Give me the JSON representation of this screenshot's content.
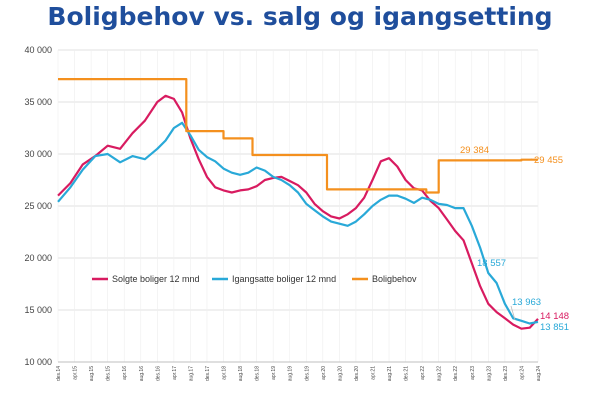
{
  "chart_data": {
    "type": "line",
    "title": "Boligbehov vs. salg og igangsetting",
    "ylim": [
      10000,
      40000
    ],
    "y_ticks": [
      "10 000",
      "15 000",
      "20 000",
      "25 000",
      "30 000",
      "35 000",
      "40 000"
    ],
    "y_tick_values": [
      10000,
      15000,
      20000,
      25000,
      30000,
      35000,
      40000
    ],
    "x_tick_labels": [
      "des.14",
      "apr.15",
      "aug.15",
      "des.15",
      "apr.16",
      "aug.16",
      "des.16",
      "apr.17",
      "aug.17",
      "des.17",
      "apr.18",
      "aug.18",
      "des.18",
      "apr.19",
      "aug.19",
      "des.19",
      "apr.20",
      "aug.20",
      "des.20",
      "apr.21",
      "aug.21",
      "des.21",
      "apr.22",
      "aug.22",
      "des.22",
      "apr.23",
      "aug.23",
      "des.23",
      "apr.24",
      "aug.24"
    ],
    "x_month_start": 0,
    "x_month_end": 116,
    "grid": true,
    "legend_position": "bottom-left",
    "series": [
      {
        "name": "Solgte boliger 12 mnd",
        "color": "#d81b60",
        "points": [
          [
            0,
            26000
          ],
          [
            3,
            27200
          ],
          [
            6,
            29000
          ],
          [
            9,
            29800
          ],
          [
            12,
            30800
          ],
          [
            15,
            30500
          ],
          [
            18,
            32000
          ],
          [
            21,
            33200
          ],
          [
            24,
            35000
          ],
          [
            26,
            35600
          ],
          [
            28,
            35300
          ],
          [
            30,
            34000
          ],
          [
            32,
            31500
          ],
          [
            34,
            29500
          ],
          [
            36,
            27800
          ],
          [
            38,
            26800
          ],
          [
            40,
            26500
          ],
          [
            42,
            26300
          ],
          [
            44,
            26500
          ],
          [
            46,
            26600
          ],
          [
            48,
            26900
          ],
          [
            50,
            27500
          ],
          [
            52,
            27700
          ],
          [
            54,
            27800
          ],
          [
            56,
            27400
          ],
          [
            58,
            27000
          ],
          [
            60,
            26300
          ],
          [
            62,
            25200
          ],
          [
            64,
            24500
          ],
          [
            66,
            24000
          ],
          [
            68,
            23800
          ],
          [
            70,
            24200
          ],
          [
            72,
            24800
          ],
          [
            74,
            25800
          ],
          [
            76,
            27500
          ],
          [
            78,
            29300
          ],
          [
            80,
            29600
          ],
          [
            82,
            28800
          ],
          [
            84,
            27500
          ],
          [
            86,
            26700
          ],
          [
            88,
            26500
          ],
          [
            90,
            25500
          ],
          [
            92,
            24800
          ],
          [
            94,
            23700
          ],
          [
            96,
            22600
          ],
          [
            98,
            21700
          ],
          [
            100,
            19500
          ],
          [
            102,
            17300
          ],
          [
            104,
            15600
          ],
          [
            106,
            14800
          ],
          [
            108,
            14200
          ],
          [
            110,
            13600
          ],
          [
            112,
            13200
          ],
          [
            114,
            13300
          ],
          [
            116,
            14148
          ]
        ]
      },
      {
        "name": "Igangsatte boliger 12 mnd",
        "color": "#29a9d8",
        "points": [
          [
            0,
            25400
          ],
          [
            3,
            26800
          ],
          [
            6,
            28500
          ],
          [
            9,
            29800
          ],
          [
            12,
            30000
          ],
          [
            15,
            29200
          ],
          [
            18,
            29800
          ],
          [
            21,
            29500
          ],
          [
            24,
            30500
          ],
          [
            26,
            31300
          ],
          [
            28,
            32500
          ],
          [
            30,
            33000
          ],
          [
            32,
            31800
          ],
          [
            34,
            30400
          ],
          [
            36,
            29700
          ],
          [
            38,
            29300
          ],
          [
            40,
            28600
          ],
          [
            42,
            28200
          ],
          [
            44,
            28000
          ],
          [
            46,
            28200
          ],
          [
            48,
            28700
          ],
          [
            50,
            28400
          ],
          [
            52,
            27800
          ],
          [
            54,
            27500
          ],
          [
            56,
            27000
          ],
          [
            58,
            26300
          ],
          [
            60,
            25200
          ],
          [
            62,
            24600
          ],
          [
            64,
            24000
          ],
          [
            66,
            23500
          ],
          [
            68,
            23300
          ],
          [
            70,
            23100
          ],
          [
            72,
            23500
          ],
          [
            74,
            24200
          ],
          [
            76,
            25000
          ],
          [
            78,
            25600
          ],
          [
            80,
            26000
          ],
          [
            82,
            26000
          ],
          [
            84,
            25700
          ],
          [
            86,
            25300
          ],
          [
            88,
            25800
          ],
          [
            90,
            25600
          ],
          [
            92,
            25200
          ],
          [
            94,
            25100
          ],
          [
            96,
            24800
          ],
          [
            98,
            24800
          ],
          [
            100,
            23100
          ],
          [
            102,
            21000
          ],
          [
            104,
            18557
          ],
          [
            106,
            17600
          ],
          [
            108,
            15600
          ],
          [
            110,
            14200
          ],
          [
            112,
            13963
          ],
          [
            114,
            13700
          ],
          [
            116,
            13851
          ]
        ]
      },
      {
        "name": "Boligbehov",
        "color": "#f4901e",
        "points": [
          [
            0,
            37200
          ],
          [
            31,
            37200
          ],
          [
            31,
            32200
          ],
          [
            40,
            32200
          ],
          [
            40,
            31500
          ],
          [
            47,
            31500
          ],
          [
            47,
            29900
          ],
          [
            65,
            29900
          ],
          [
            65,
            26600
          ],
          [
            89,
            26600
          ],
          [
            89,
            26300
          ],
          [
            92,
            26300
          ],
          [
            92,
            29384
          ],
          [
            112,
            29384
          ],
          [
            112,
            29455
          ],
          [
            116,
            29455
          ]
        ]
      }
    ],
    "annotations": [
      {
        "text": "29 384",
        "color": "#f4901e"
      },
      {
        "text": "29 455",
        "color": "#f4901e"
      },
      {
        "text": "18 557",
        "color": "#29a9d8"
      },
      {
        "text": "13 963",
        "color": "#29a9d8"
      },
      {
        "text": "14 148",
        "color": "#d81b60"
      },
      {
        "text": "13 851",
        "color": "#29a9d8"
      }
    ]
  }
}
